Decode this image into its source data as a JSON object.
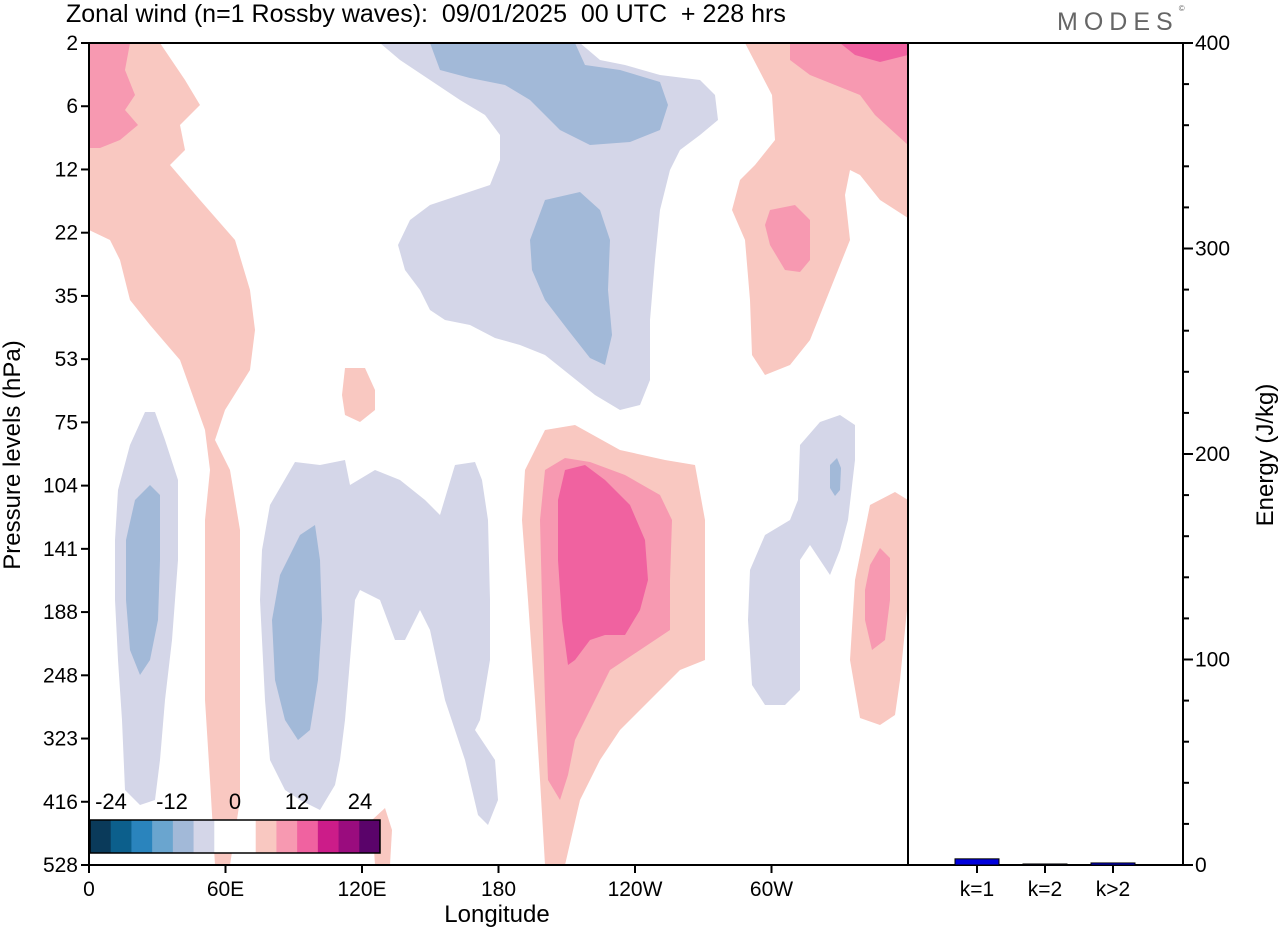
{
  "header": {
    "title": "Zonal wind (n=1 Rossby waves):  09/01/2025  00 UTC  + 228 hrs",
    "logo": "MODES",
    "logo_mark": "©"
  },
  "colors": {
    "neg_strong": "#a2b9d8",
    "neg_weak": "#d4d6e8",
    "pos_weak": "#f9c8c1",
    "pos_mid": "#f799b1",
    "pos_strong": "#f062a0",
    "bar": "#0000dd"
  },
  "chart_data": [
    {
      "type": "heatmap",
      "title": "Zonal wind (n=1 Rossby waves):  09/01/2025  00 UTC  + 228 hrs",
      "xlabel": "Longitude",
      "ylabel": "Pressure levels (hPa)",
      "x_ticks": [
        "0",
        "60E",
        "120E",
        "180",
        "120W",
        "60W"
      ],
      "y_ticks": [
        "2",
        "6",
        "12",
        "22",
        "35",
        "53",
        "75",
        "104",
        "141",
        "188",
        "248",
        "323",
        "416",
        "528"
      ],
      "colorbar": {
        "labels": [
          "-24",
          "-12",
          "0",
          "12",
          "24"
        ],
        "colors": [
          "#0a3a5a",
          "#0c5f8c",
          "#2a84bd",
          "#6aa5cf",
          "#a2b9d8",
          "#d4d6e8",
          "#ffffff",
          "#ffffff",
          "#f9c8c1",
          "#f799b1",
          "#f062a0",
          "#cc1c89",
          "#9a0c7e",
          "#5a036a"
        ]
      }
    },
    {
      "type": "bar",
      "categories": [
        "k=1",
        "k=2",
        "k>2"
      ],
      "values": [
        3,
        0.5,
        1
      ],
      "ylabel": "Energy (J/kg)",
      "ylim": [
        0,
        400
      ],
      "y_ticks": [
        "0",
        "100",
        "200",
        "300",
        "400"
      ]
    }
  ]
}
